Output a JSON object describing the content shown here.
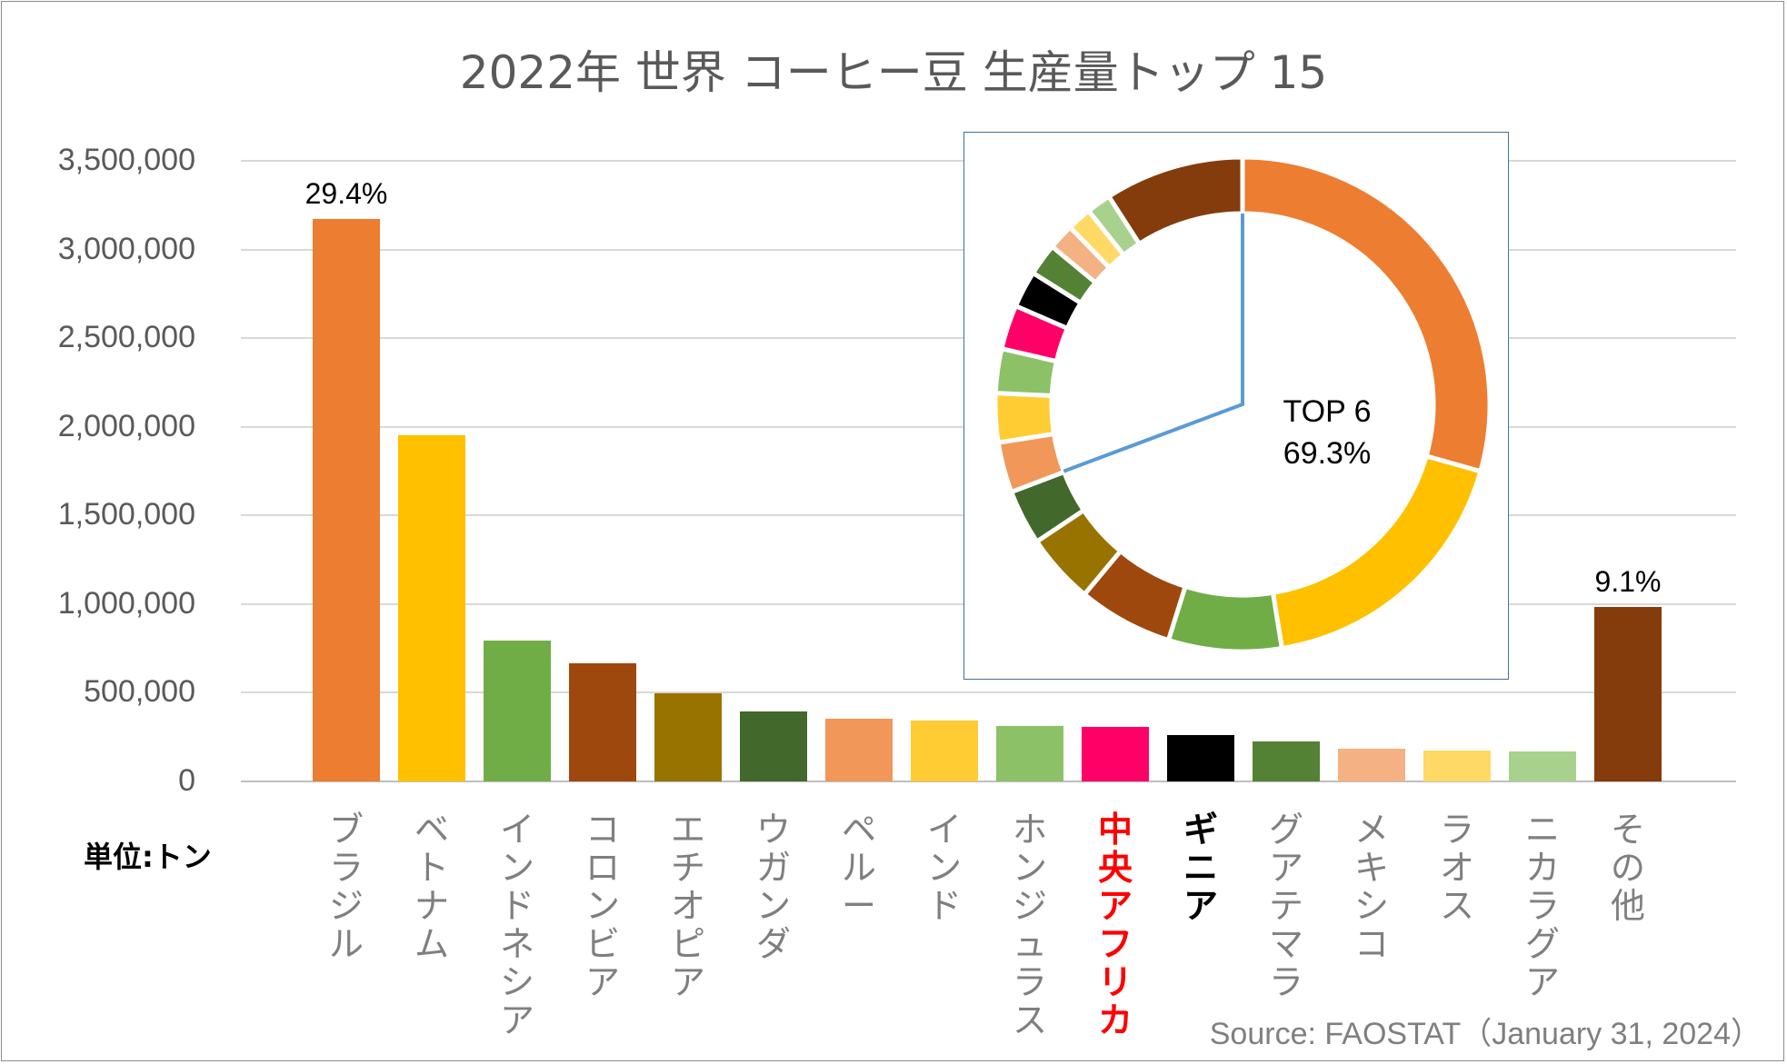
{
  "chart_data": [
    {
      "type": "bar",
      "title": "2022年 世界 コーヒー豆 生産量トップ 15",
      "unit_label": "単位:トン",
      "source": "Source: FAOSTAT（January 31, 2024）",
      "ylim": [
        0,
        3500000
      ],
      "yticks": [
        "0",
        "500,000",
        "1,000,000",
        "1,500,000",
        "2,000,000",
        "2,500,000",
        "3,000,000",
        "3,500,000"
      ],
      "ytick_values": [
        0,
        500000,
        1000000,
        1500000,
        2000000,
        2500000,
        3000000,
        3500000
      ],
      "categories": [
        "ブラジル",
        "ベトナム",
        "インドネシア",
        "コロンビア",
        "エチオピア",
        "ウガンダ",
        "ペルー",
        "インド",
        "ホンジュラス",
        "中央アフリカ",
        "ギニア",
        "グアテマラ",
        "メキシコ",
        "ラオス",
        "ニカラグア",
        "その他"
      ],
      "values": [
        3172562,
        1953990,
        794762,
        665808,
        496200,
        393197,
        355000,
        342000,
        315000,
        308000,
        261000,
        225000,
        183000,
        175000,
        170000,
        985000
      ],
      "colors": [
        "#ed7d31",
        "#ffc000",
        "#70ad47",
        "#9e480e",
        "#997300",
        "#43682b",
        "#f1975a",
        "#ffcd33",
        "#8cc168",
        "#ff0066",
        "#000000",
        "#548235",
        "#f4b183",
        "#ffd966",
        "#a9d18e",
        "#843c0c"
      ],
      "highlight": {
        "中央アフリカ": "red",
        "ギニア": "black"
      },
      "data_labels": {
        "ブラジル": "29.4%",
        "その他": "9.1%"
      }
    },
    {
      "type": "pie",
      "style": "donut",
      "center_text": [
        "TOP 6",
        "69.3%"
      ],
      "shares": [
        29.4,
        18.1,
        7.4,
        6.2,
        4.6,
        3.6,
        3.3,
        3.2,
        2.9,
        2.9,
        2.4,
        2.1,
        1.7,
        1.6,
        1.6,
        9.1
      ],
      "top6_share": 69.3
    }
  ]
}
